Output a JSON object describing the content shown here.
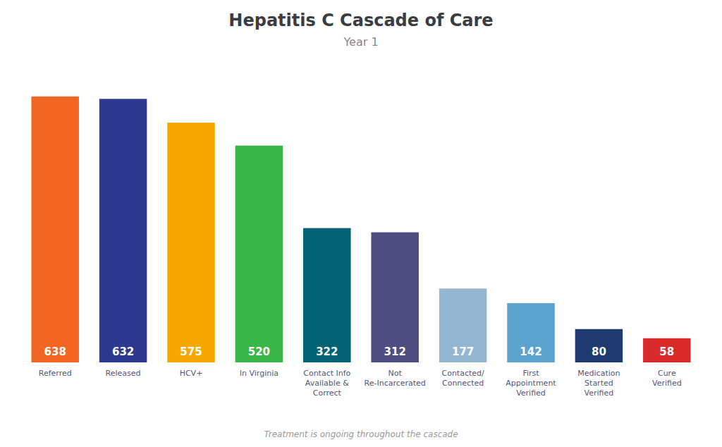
{
  "chart_data": {
    "type": "bar",
    "title": "Hepatitis C Cascade of Care",
    "subtitle": "Year 1",
    "categories": [
      "Referred",
      "Released",
      "HCV+",
      "In Virginia",
      "Contact Info\nAvailable &\nCorrect",
      "Not\nRe-Incarcerated",
      "Contacted/\nConnected",
      "First\nAppointment\nVerified",
      "Medication\nStarted\nVerified",
      "Cure\nVerified"
    ],
    "values": [
      638,
      632,
      575,
      520,
      322,
      312,
      177,
      142,
      80,
      58
    ],
    "colors": [
      "#F26522",
      "#2B3990",
      "#F7A800",
      "#39B54A",
      "#006272",
      "#4D4D7F",
      "#93B7D0",
      "#5BA4CF",
      "#1F3A6E",
      "#D92B2B"
    ],
    "data_labels": true,
    "ylim": [
      0,
      700
    ],
    "tick_labels": false,
    "grid": false,
    "annotations": [
      "Treatment is ongoing throughout the cascade"
    ]
  }
}
